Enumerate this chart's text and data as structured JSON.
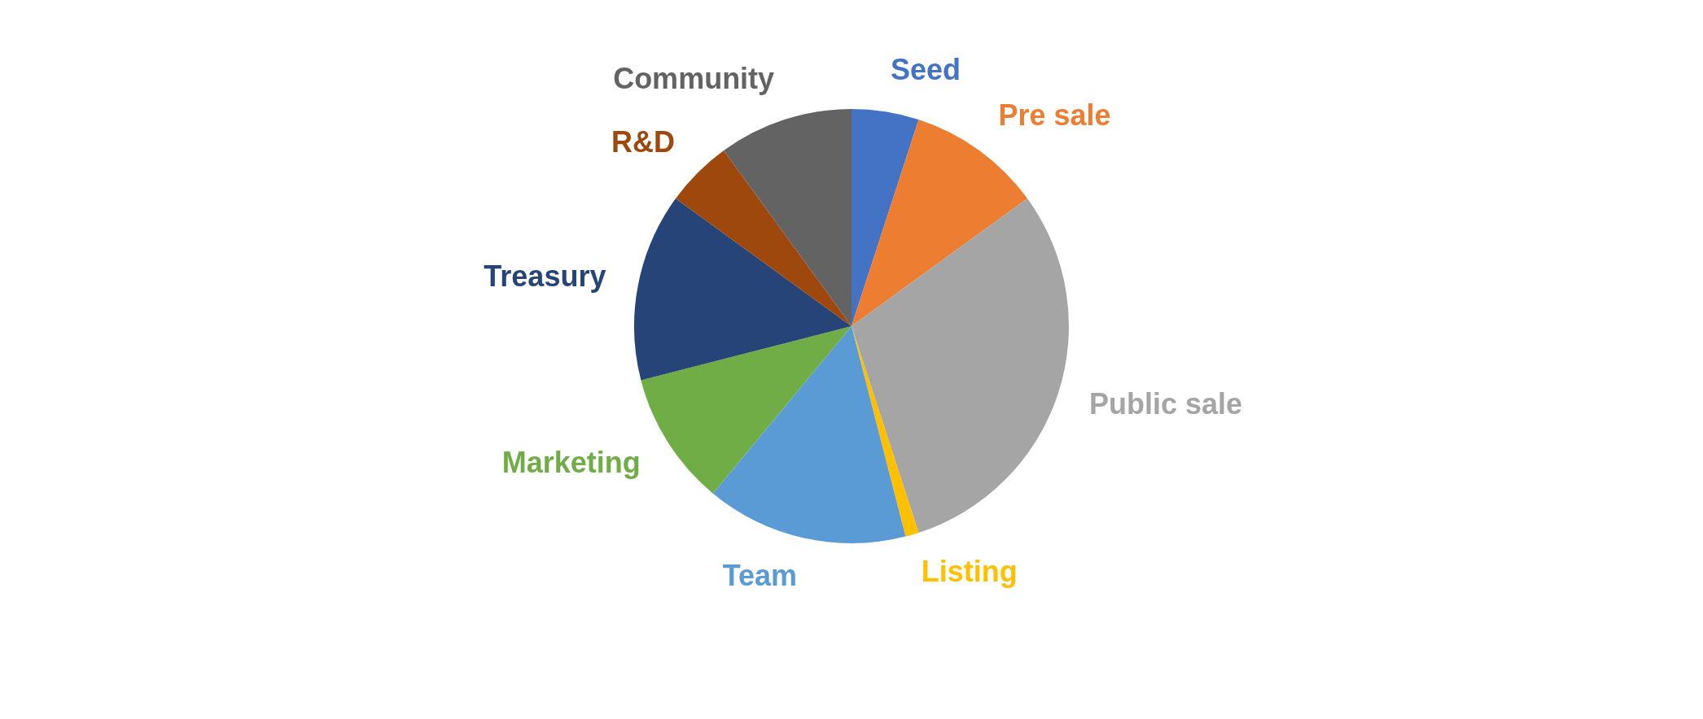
{
  "chart_data": {
    "type": "pie",
    "categories": [
      "Seed",
      "Pre sale",
      "Public sale",
      "Listing",
      "Team",
      "Marketing",
      "Treasury",
      "R&D",
      "Community"
    ],
    "values": [
      5,
      10,
      30,
      1,
      15,
      10,
      14,
      5,
      10
    ],
    "colors": [
      "#4472c4",
      "#ed7d31",
      "#a5a5a5",
      "#ffc000",
      "#5b9bd5",
      "#70ad47",
      "#264478",
      "#9e480e",
      "#636363"
    ],
    "legend": false
  }
}
